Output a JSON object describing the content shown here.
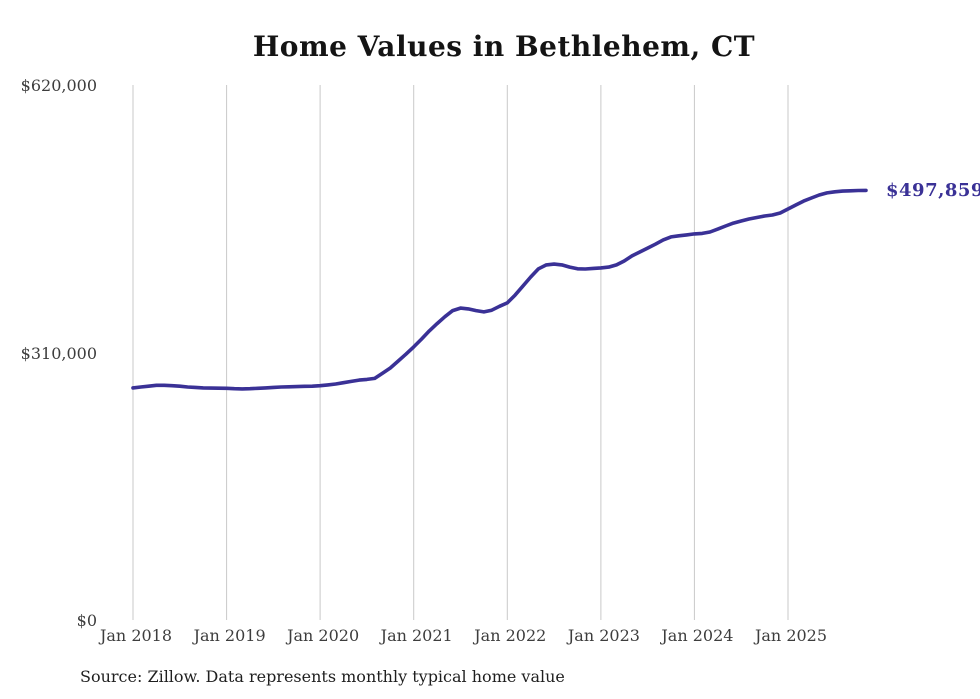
{
  "title": "Home Values in Bethlehem, CT",
  "annotation": {
    "final_value_label": "$497,859"
  },
  "source_note": "Source: Zillow. Data represents monthly typical home value",
  "colors": {
    "line": "#3a3196",
    "grid": "#c9c9c9",
    "axis_text": "#3d3d3d",
    "title_text": "#141414",
    "annotation_text": "#3a3196",
    "background": "#ffffff"
  },
  "chart_data": {
    "type": "line",
    "title": "Home Values in Bethlehem, CT",
    "xlabel": "",
    "ylabel": "",
    "ylim": [
      0,
      620000
    ],
    "y_tick_values": [
      0,
      310000,
      620000
    ],
    "y_tick_labels": [
      "$0",
      "$310,000",
      "$620,000"
    ],
    "x_tick_labels": [
      "Jan 2018",
      "Jan 2019",
      "Jan 2020",
      "Jan 2021",
      "Jan 2022",
      "Jan 2023",
      "Jan 2024",
      "Jan 2025"
    ],
    "x_frequency": "monthly",
    "x_start": "Jan 2018",
    "x_end": "Nov 2025",
    "grid": "vertical-only",
    "legend": false,
    "final_value": 497859,
    "series": [
      {
        "name": "Typical home value",
        "values": [
          269000,
          270000,
          271000,
          272000,
          272000,
          271500,
          271000,
          270000,
          269500,
          269000,
          268800,
          268600,
          268500,
          268000,
          267800,
          268000,
          268500,
          269000,
          269500,
          270000,
          270300,
          270500,
          270800,
          271000,
          271500,
          272500,
          273500,
          275000,
          276500,
          278000,
          278800,
          280000,
          286000,
          292000,
          300000,
          308000,
          316500,
          325500,
          335000,
          343500,
          351500,
          358500,
          361500,
          360500,
          358500,
          357000,
          359000,
          363500,
          367500,
          376500,
          387000,
          397500,
          407000,
          411500,
          412500,
          411500,
          409000,
          407000,
          406800,
          407500,
          408000,
          409000,
          411500,
          416000,
          422000,
          426500,
          431000,
          435500,
          440500,
          444000,
          445200,
          446300,
          447400,
          448000,
          449600,
          453000,
          456600,
          460000,
          462400,
          464700,
          466500,
          468200,
          469400,
          471700,
          476300,
          480900,
          485500,
          489000,
          492500,
          494900,
          496200,
          497000,
          497400,
          497700,
          497859
        ]
      }
    ]
  }
}
